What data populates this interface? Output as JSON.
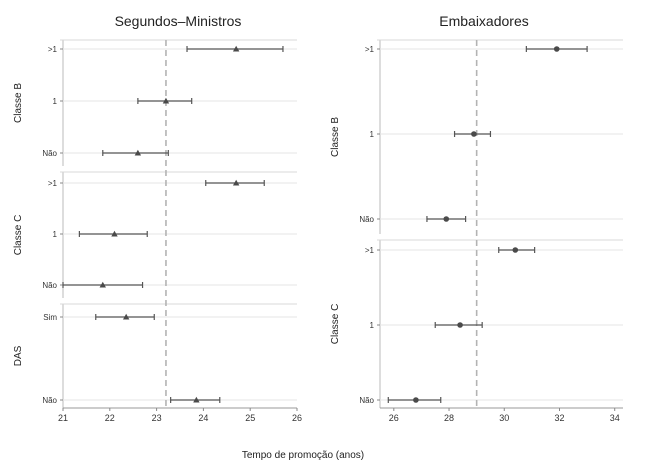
{
  "chart_data": [
    {
      "type": "scatter",
      "subtype": "coefficient-plot",
      "title": "Segundos–Ministros",
      "marker": "triangle",
      "xlim": [
        21,
        26
      ],
      "xticks": [
        21,
        22,
        23,
        24,
        25,
        26
      ],
      "reference_line_x": 23.2,
      "panels": [
        {
          "label": "Classe B",
          "categories": [
            ">1",
            "1",
            "Não"
          ],
          "points": [
            {
              "category": ">1",
              "estimate": 24.7,
              "low": 23.65,
              "high": 25.7
            },
            {
              "category": "1",
              "estimate": 23.2,
              "low": 22.6,
              "high": 23.75
            },
            {
              "category": "Não",
              "estimate": 22.6,
              "low": 21.85,
              "high": 23.25
            }
          ]
        },
        {
          "label": "Classe C",
          "categories": [
            ">1",
            "1",
            "Não"
          ],
          "points": [
            {
              "category": ">1",
              "estimate": 24.7,
              "low": 24.05,
              "high": 25.3
            },
            {
              "category": "1",
              "estimate": 22.1,
              "low": 21.35,
              "high": 22.8
            },
            {
              "category": "Não",
              "estimate": 21.85,
              "low": 21.0,
              "high": 22.7
            }
          ]
        },
        {
          "label": "DAS",
          "categories": [
            "Sim",
            "Não"
          ],
          "points": [
            {
              "category": "Sim",
              "estimate": 22.35,
              "low": 21.7,
              "high": 22.95
            },
            {
              "category": "Não",
              "estimate": 23.85,
              "low": 23.3,
              "high": 24.35
            }
          ]
        }
      ]
    },
    {
      "type": "scatter",
      "subtype": "coefficient-plot",
      "title": "Embaixadores",
      "marker": "circle",
      "xlim": [
        25.5,
        34.3
      ],
      "xticks": [
        26,
        28,
        30,
        32,
        34
      ],
      "reference_line_x": 29.0,
      "panels": [
        {
          "label": "Classe B",
          "categories": [
            ">1",
            "1",
            "Não"
          ],
          "points": [
            {
              "category": ">1",
              "estimate": 31.9,
              "low": 30.8,
              "high": 33.0
            },
            {
              "category": "1",
              "estimate": 28.9,
              "low": 28.2,
              "high": 29.5
            },
            {
              "category": "Não",
              "estimate": 27.9,
              "low": 27.2,
              "high": 28.6
            }
          ]
        },
        {
          "label": "Classe C",
          "categories": [
            ">1",
            "1",
            "Não"
          ],
          "points": [
            {
              "category": ">1",
              "estimate": 30.4,
              "low": 29.8,
              "high": 31.1
            },
            {
              "category": "1",
              "estimate": 28.4,
              "low": 27.5,
              "high": 29.2
            },
            {
              "category": "Não",
              "estimate": 26.8,
              "low": 25.8,
              "high": 27.7
            }
          ]
        }
      ]
    }
  ],
  "xlabel": "Tempo de promoção (anos)",
  "colors": {
    "marker": "#4a4a4a",
    "errorbar": "#555555",
    "refline": "#b3b3b3",
    "grid": "#e6e6e6",
    "frame": "#bbbbbb"
  }
}
